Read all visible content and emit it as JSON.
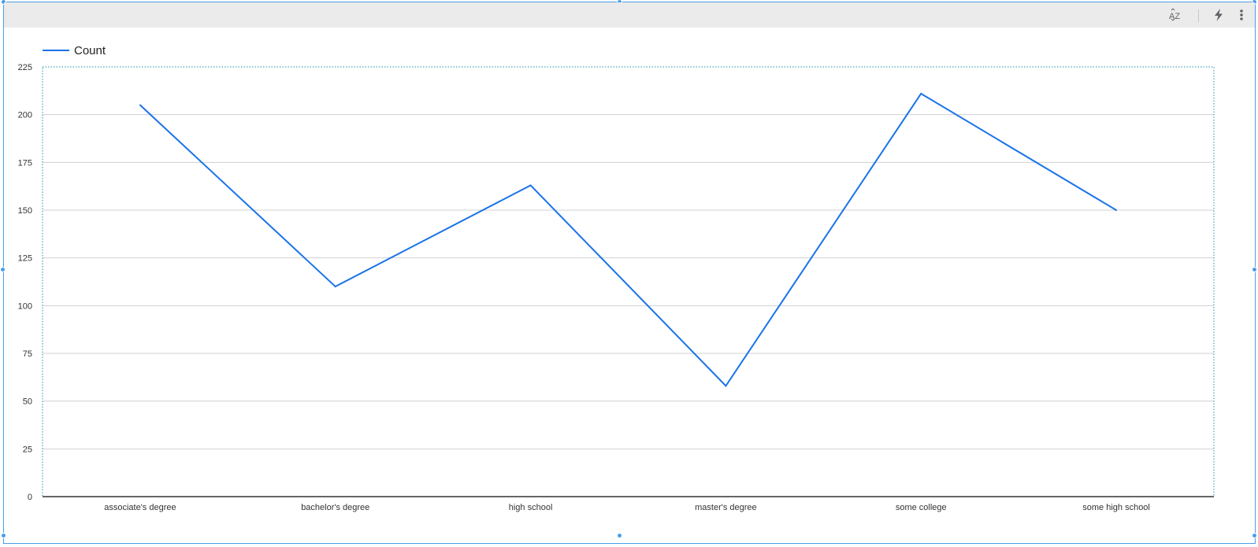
{
  "toolbar": {
    "sort_icon": "sort-az-icon",
    "explore_icon": "lightning-bolt-icon",
    "more_icon": "more-vert-icon",
    "sort_label": "AZ"
  },
  "colors": {
    "series": "#1a73e8",
    "selection": "#4a9ee8",
    "grid": "#d0d0d0",
    "toolbar_bg": "#ebebeb"
  },
  "chart_data": {
    "type": "line",
    "categories": [
      "associate's degree",
      "bachelor's degree",
      "high school",
      "master's degree",
      "some college",
      "some high school"
    ],
    "series": [
      {
        "name": "Count",
        "values": [
          205,
          110,
          163,
          58,
          211,
          150
        ]
      }
    ],
    "yticks": [
      0,
      25,
      50,
      75,
      100,
      125,
      150,
      175,
      200,
      225
    ],
    "ylim": [
      0,
      225
    ],
    "grid": true,
    "legend": "top-left"
  }
}
